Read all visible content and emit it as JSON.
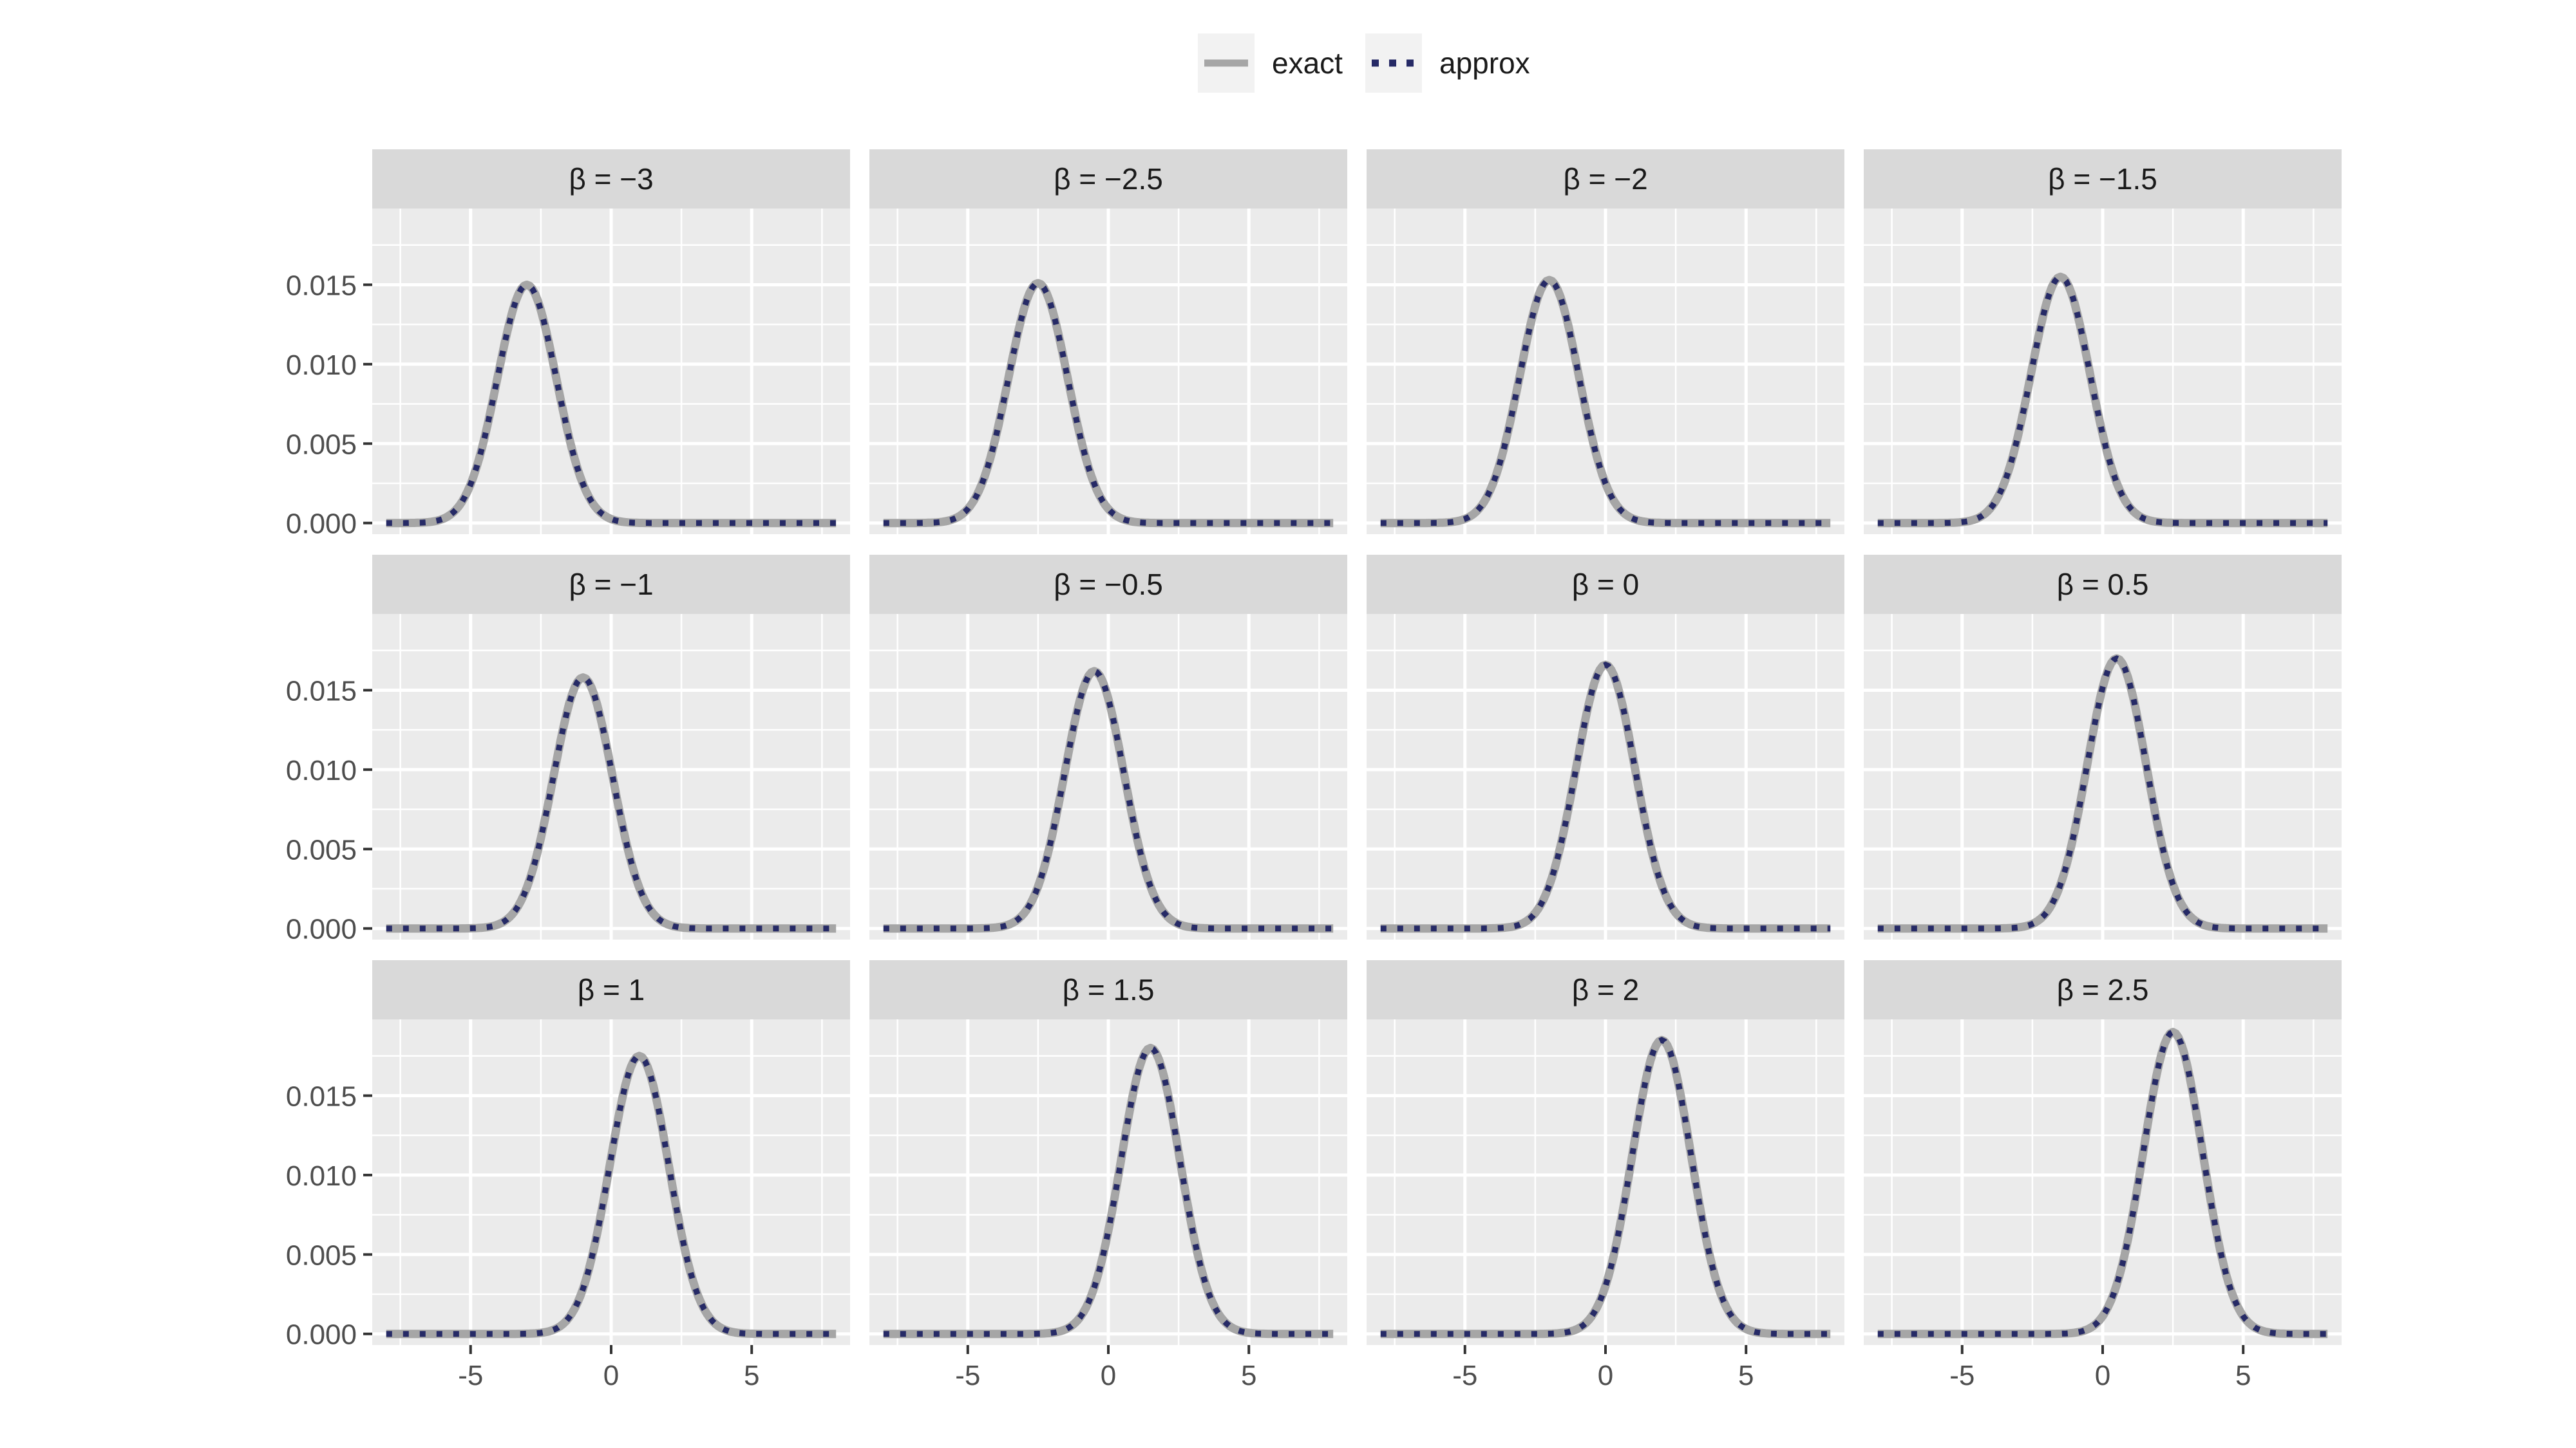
{
  "legend": {
    "placement": "top",
    "items": [
      {
        "label": "exact",
        "color": "#a6a6a6",
        "style": "solid"
      },
      {
        "label": "approx",
        "color": "#262a66",
        "style": "dotted"
      }
    ]
  },
  "chart_data": {
    "type": "line",
    "layout": {
      "rows": 3,
      "cols": 4
    },
    "facet_label_prefix": "β =",
    "xlim": [
      -8.5,
      8.5
    ],
    "ylim": [
      -0.0007,
      0.0198
    ],
    "x_ticks": [
      -5,
      0,
      5
    ],
    "x_tick_labels": [
      "-5",
      "0",
      "5"
    ],
    "y_ticks": [
      0,
      0.005,
      0.01,
      0.015
    ],
    "y_tick_labels": [
      "0.000",
      "0.005",
      "0.010",
      "0.015"
    ],
    "grid": true,
    "x_range_of_curves": [
      -8,
      8
    ],
    "colors": {
      "panel_bg": "#ebebeb",
      "strip_bg": "#d9d9d9",
      "grid": "#ffffff",
      "exact": "#a6a6a6",
      "approx": "#262a66"
    },
    "facets": [
      {
        "label": "-3",
        "center": -3.0,
        "peak": 0.015
      },
      {
        "label": "-2.5",
        "center": -2.5,
        "peak": 0.0151
      },
      {
        "label": "-2",
        "center": -2.0,
        "peak": 0.0153
      },
      {
        "label": "-1.5",
        "center": -1.5,
        "peak": 0.0155
      },
      {
        "label": "-1",
        "center": -1.0,
        "peak": 0.0158
      },
      {
        "label": "-0.5",
        "center": -0.5,
        "peak": 0.0162
      },
      {
        "label": "0",
        "center": 0.0,
        "peak": 0.0166
      },
      {
        "label": "0.5",
        "center": 0.5,
        "peak": 0.017
      },
      {
        "label": "1",
        "center": 1.0,
        "peak": 0.0175
      },
      {
        "label": "1.5",
        "center": 1.5,
        "peak": 0.018
      },
      {
        "label": "2",
        "center": 2.0,
        "peak": 0.0185
      },
      {
        "label": "2.5",
        "center": 2.5,
        "peak": 0.019
      }
    ],
    "series": [
      {
        "name": "exact"
      },
      {
        "name": "approx"
      }
    ]
  }
}
